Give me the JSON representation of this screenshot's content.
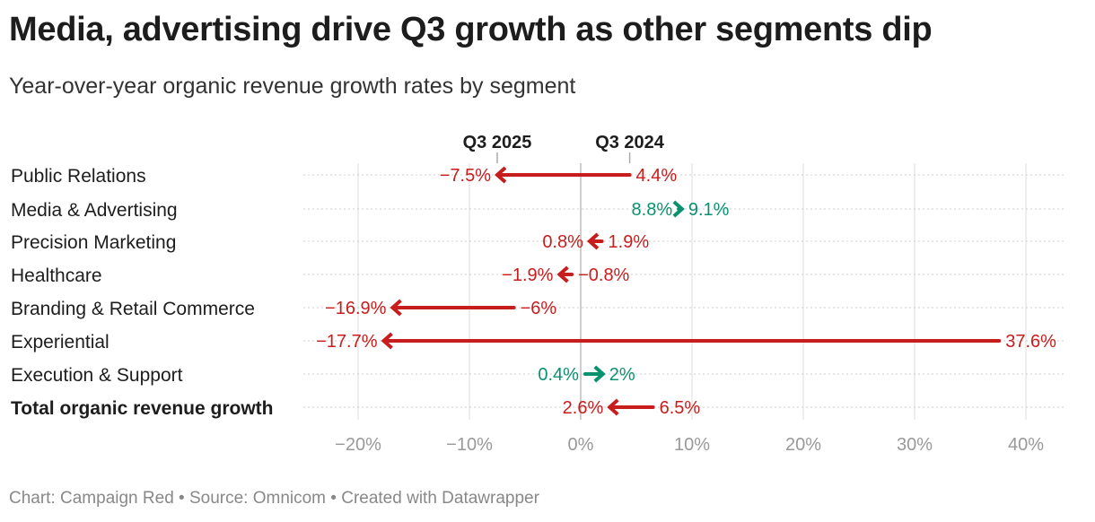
{
  "title": "Media, advertising drive Q3 growth as other segments dip",
  "subtitle": "Year-over-year organic revenue growth rates by segment",
  "footer": "Chart: Campaign Red • Source: Omnicom • Created with Datawrapper",
  "colors": {
    "decline": "#c71e1d",
    "increase": "#0a9170",
    "grid": "#e2e2e2",
    "zero": "#bdbdbd",
    "tick": "#999999"
  },
  "chart_data": {
    "type": "arrow",
    "title": "Media, advertising drive Q3 growth as other segments dip",
    "start_label": "Q3 2024",
    "end_label": "Q3 2025",
    "xlim": [
      -25,
      44
    ],
    "xticks": [
      -20,
      -10,
      0,
      10,
      20,
      30,
      40
    ],
    "xtick_labels": [
      "−20%",
      "−10%",
      "0%",
      "10%",
      "20%",
      "30%",
      "40%"
    ],
    "grid": true,
    "rows": [
      {
        "label": "Public Relations",
        "q3_2024": 4.4,
        "q3_2025": -7.5,
        "start_text": "4.4%",
        "end_text": "−7.5%"
      },
      {
        "label": "Media & Advertising",
        "q3_2024": 8.8,
        "q3_2025": 9.1,
        "start_text": "8.8%",
        "end_text": "9.1%"
      },
      {
        "label": "Precision Marketing",
        "q3_2024": 1.9,
        "q3_2025": 0.8,
        "start_text": "1.9%",
        "end_text": "0.8%"
      },
      {
        "label": "Healthcare",
        "q3_2024": -0.8,
        "q3_2025": -1.9,
        "start_text": "−0.8%",
        "end_text": "−1.9%"
      },
      {
        "label": "Branding & Retail Commerce",
        "q3_2024": -6,
        "q3_2025": -16.9,
        "start_text": "−6%",
        "end_text": "−16.9%"
      },
      {
        "label": "Experiential",
        "q3_2024": 37.6,
        "q3_2025": -17.7,
        "start_text": "37.6%",
        "end_text": "−17.7%"
      },
      {
        "label": "Execution & Support",
        "q3_2024": 0.4,
        "q3_2025": 2,
        "start_text": "0.4%",
        "end_text": "2%"
      },
      {
        "label": "Total organic revenue growth",
        "q3_2024": 6.5,
        "q3_2025": 2.6,
        "start_text": "6.5%",
        "end_text": "2.6%",
        "bold": true
      }
    ]
  }
}
